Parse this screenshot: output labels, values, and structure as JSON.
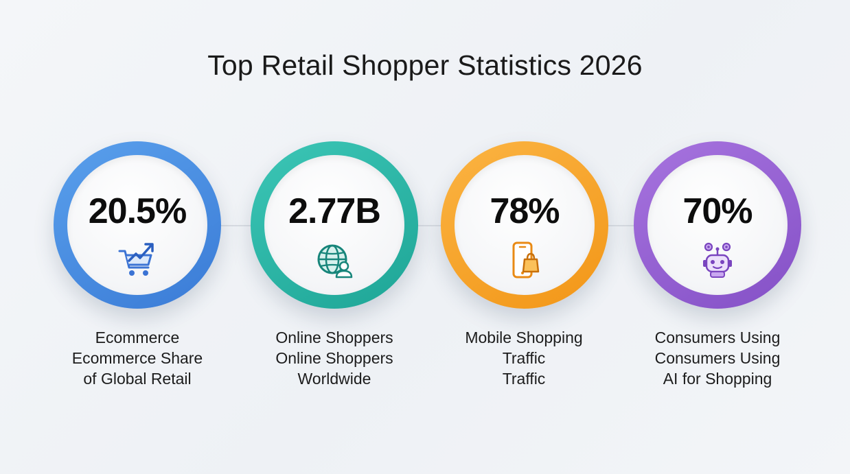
{
  "title": "Top Retail Shopper Statistics 2026",
  "stats": [
    {
      "value": "20.5%",
      "icon": "shopping-cart-growth-icon",
      "color": "#4a8fe0",
      "label_lines": [
        "Ecommerce",
        "Ecommerce Share",
        "of Global Retail"
      ]
    },
    {
      "value": "2.77B",
      "icon": "globe-user-icon",
      "color": "#26b3a3",
      "label_lines": [
        "Online Shoppers",
        "Online Shoppers",
        "Worldwide"
      ]
    },
    {
      "value": "78%",
      "icon": "mobile-shopping-bag-icon",
      "color": "#f6a22c",
      "label_lines": [
        "Mobile Shopping",
        "Traffic",
        "Traffic"
      ]
    },
    {
      "value": "70%",
      "icon": "ai-robot-gears-icon",
      "color": "#9560d0",
      "label_lines": [
        "Consumers Using",
        "Consumers Using",
        "AI for Shopping"
      ]
    }
  ]
}
